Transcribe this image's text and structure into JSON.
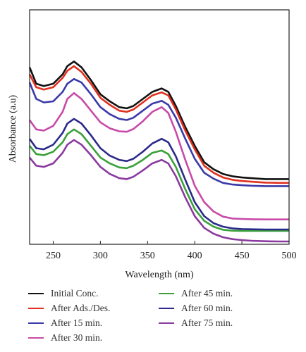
{
  "chart_data": {
    "type": "line",
    "xlabel": "Wavelength (nm)",
    "ylabel": "Absorbance (a.u)",
    "xlim": [
      225,
      500
    ],
    "ylim": [
      0,
      1
    ],
    "xticks": [
      250,
      300,
      350,
      400,
      450,
      500
    ],
    "yticks": [],
    "grid": false,
    "legend_position": "bottom",
    "series": [
      {
        "name": "Initial Conc.",
        "color": "#111111",
        "x": [
          225,
          232,
          240,
          250,
          260,
          265,
          272,
          280,
          290,
          300,
          310,
          320,
          328,
          335,
          345,
          355,
          365,
          372,
          380,
          390,
          400,
          410,
          420,
          430,
          440,
          450,
          460,
          475,
          490,
          500
        ],
        "y": [
          0.755,
          0.685,
          0.675,
          0.685,
          0.725,
          0.76,
          0.78,
          0.755,
          0.7,
          0.64,
          0.61,
          0.585,
          0.58,
          0.59,
          0.62,
          0.65,
          0.665,
          0.65,
          0.59,
          0.5,
          0.42,
          0.35,
          0.32,
          0.3,
          0.29,
          0.285,
          0.282,
          0.278,
          0.278,
          0.278
        ]
      },
      {
        "name": "After Ads./Des.",
        "color": "#e0301e",
        "x": [
          225,
          232,
          240,
          250,
          260,
          265,
          272,
          280,
          290,
          300,
          310,
          320,
          328,
          335,
          345,
          355,
          365,
          372,
          380,
          390,
          400,
          410,
          420,
          430,
          440,
          450,
          460,
          475,
          490,
          500
        ],
        "y": [
          0.725,
          0.67,
          0.66,
          0.67,
          0.71,
          0.74,
          0.76,
          0.735,
          0.685,
          0.625,
          0.595,
          0.57,
          0.565,
          0.575,
          0.605,
          0.635,
          0.648,
          0.635,
          0.575,
          0.485,
          0.405,
          0.335,
          0.305,
          0.285,
          0.275,
          0.27,
          0.267,
          0.263,
          0.262,
          0.262
        ]
      },
      {
        "name": "After 15 min.",
        "color": "#3a3aa8",
        "x": [
          225,
          232,
          240,
          250,
          260,
          265,
          272,
          280,
          290,
          300,
          310,
          320,
          328,
          335,
          345,
          355,
          365,
          372,
          380,
          390,
          400,
          410,
          420,
          430,
          440,
          450,
          460,
          475,
          490,
          500
        ],
        "y": [
          0.69,
          0.62,
          0.605,
          0.61,
          0.65,
          0.685,
          0.705,
          0.69,
          0.64,
          0.585,
          0.555,
          0.535,
          0.53,
          0.54,
          0.57,
          0.6,
          0.612,
          0.595,
          0.54,
          0.45,
          0.365,
          0.305,
          0.28,
          0.262,
          0.255,
          0.252,
          0.25,
          0.248,
          0.248,
          0.248
        ]
      },
      {
        "name": "After 30 min.",
        "color": "#c84aa8",
        "x": [
          225,
          232,
          240,
          250,
          260,
          265,
          272,
          280,
          290,
          300,
          310,
          320,
          328,
          335,
          345,
          355,
          365,
          372,
          380,
          390,
          400,
          410,
          420,
          430,
          440,
          450,
          460,
          475,
          490,
          500
        ],
        "y": [
          0.53,
          0.49,
          0.485,
          0.505,
          0.565,
          0.62,
          0.645,
          0.62,
          0.57,
          0.52,
          0.495,
          0.482,
          0.48,
          0.492,
          0.525,
          0.565,
          0.585,
          0.56,
          0.48,
          0.36,
          0.25,
          0.18,
          0.14,
          0.118,
          0.11,
          0.108,
          0.107,
          0.106,
          0.106,
          0.106
        ]
      },
      {
        "name": "After 45 min.",
        "color": "#3aa03a",
        "x": [
          225,
          232,
          240,
          250,
          260,
          265,
          272,
          280,
          290,
          300,
          310,
          320,
          328,
          335,
          345,
          355,
          365,
          372,
          380,
          390,
          400,
          410,
          420,
          430,
          440,
          450,
          460,
          475,
          490,
          500
        ],
        "y": [
          0.42,
          0.385,
          0.38,
          0.395,
          0.435,
          0.47,
          0.49,
          0.47,
          0.42,
          0.37,
          0.345,
          0.328,
          0.325,
          0.335,
          0.36,
          0.39,
          0.4,
          0.385,
          0.33,
          0.235,
          0.15,
          0.1,
          0.075,
          0.062,
          0.058,
          0.057,
          0.057,
          0.057,
          0.057,
          0.057
        ]
      },
      {
        "name": "After 60 min.",
        "color": "#2a2a8a",
        "x": [
          225,
          232,
          240,
          250,
          260,
          265,
          272,
          280,
          290,
          300,
          310,
          320,
          328,
          335,
          345,
          355,
          365,
          372,
          380,
          390,
          400,
          410,
          420,
          430,
          440,
          450,
          460,
          475,
          490,
          500
        ],
        "y": [
          0.45,
          0.41,
          0.405,
          0.425,
          0.475,
          0.515,
          0.535,
          0.515,
          0.465,
          0.41,
          0.378,
          0.36,
          0.355,
          0.365,
          0.395,
          0.43,
          0.45,
          0.435,
          0.375,
          0.275,
          0.18,
          0.12,
          0.09,
          0.075,
          0.068,
          0.065,
          0.064,
          0.063,
          0.063,
          0.063
        ]
      },
      {
        "name": "After 75 min.",
        "color": "#8a3aa0",
        "x": [
          225,
          232,
          240,
          250,
          260,
          265,
          272,
          280,
          290,
          300,
          310,
          320,
          328,
          335,
          345,
          355,
          365,
          372,
          380,
          390,
          400,
          410,
          420,
          430,
          440,
          450,
          460,
          475,
          490,
          500
        ],
        "y": [
          0.37,
          0.335,
          0.33,
          0.345,
          0.39,
          0.425,
          0.445,
          0.425,
          0.38,
          0.33,
          0.3,
          0.282,
          0.278,
          0.288,
          0.315,
          0.345,
          0.36,
          0.345,
          0.29,
          0.2,
          0.12,
          0.07,
          0.045,
          0.03,
          0.022,
          0.018,
          0.015,
          0.013,
          0.012,
          0.012
        ]
      }
    ],
    "legend": [
      {
        "label": "Initial Conc.",
        "color": "#111111"
      },
      {
        "label": "After Ads./Des.",
        "color": "#e0301e"
      },
      {
        "label": "After 15 min.",
        "color": "#3a3aa8"
      },
      {
        "label": "After 30 min.",
        "color": "#c84aa8"
      },
      {
        "label": "After 45 min.",
        "color": "#3aa03a"
      },
      {
        "label": "After 60 min.",
        "color": "#2a2a8a"
      },
      {
        "label": "After 75 min.",
        "color": "#8a3aa0"
      }
    ]
  }
}
